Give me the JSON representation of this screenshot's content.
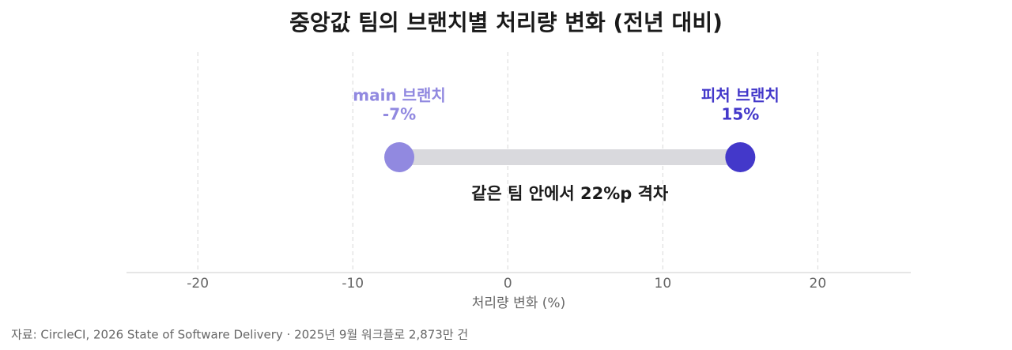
{
  "chart_data": {
    "type": "dumbbell",
    "title": "중앙값 팀의 브랜치별 처리량 변화 (전년 대비)",
    "x_label": "처리량 변화 (%)",
    "annotation": "같은 팀 안에서 22%p 격차",
    "source": "자료: CircleCI, 2026 State of Software Delivery · 2025년 9월 워크플로 2,873만 건",
    "series": [
      {
        "name": "main 브랜치",
        "color": "#9189e0",
        "values": [
          -7
        ],
        "value_labels": [
          "-7%"
        ]
      },
      {
        "name": "피처 브랜치",
        "color": "#4338ca",
        "values": [
          15
        ],
        "value_labels": [
          "15%"
        ]
      }
    ],
    "connector_color": "#d9d9dd",
    "xlim": [
      -24.6,
      26
    ],
    "xticks": [
      -20,
      -10,
      0,
      10,
      20
    ],
    "grid": true
  }
}
